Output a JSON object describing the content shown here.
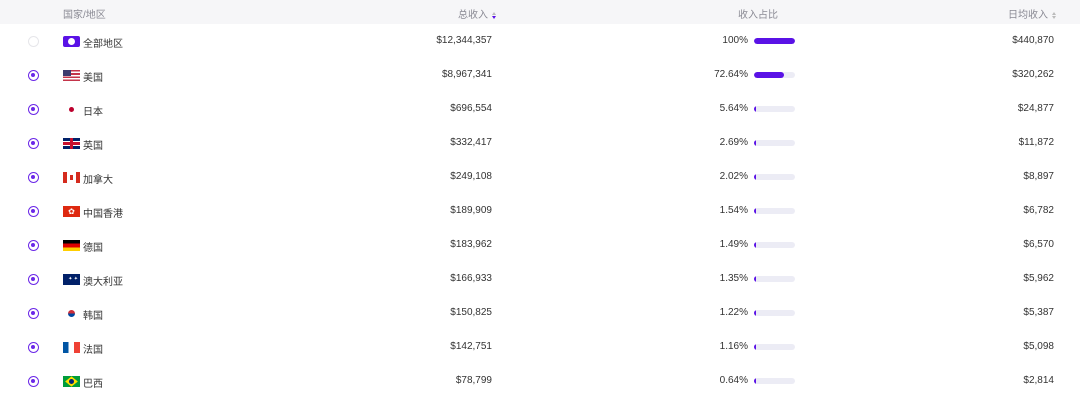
{
  "header": {
    "country": "国家/地区",
    "total": "总收入",
    "share": "收入占比",
    "daily": "日均收入"
  },
  "colors": {
    "accent": "#5a12e6",
    "radio": "#6b28e8",
    "bar_track": "#ececf5"
  },
  "rows": [
    {
      "name": "全部地区",
      "flag": "all-regions-icon",
      "selected": false,
      "total": "$12,344,357",
      "pct": "100%",
      "share": 100,
      "daily": "$440,870"
    },
    {
      "name": "美国",
      "flag": "us-flag-icon",
      "selected": true,
      "total": "$8,967,341",
      "pct": "72.64%",
      "share": 72.64,
      "daily": "$320,262"
    },
    {
      "name": "日本",
      "flag": "jp-flag-icon",
      "selected": true,
      "total": "$696,554",
      "pct": "5.64%",
      "share": 5.64,
      "daily": "$24,877"
    },
    {
      "name": "英国",
      "flag": "gb-flag-icon",
      "selected": true,
      "total": "$332,417",
      "pct": "2.69%",
      "share": 2.69,
      "daily": "$11,872"
    },
    {
      "name": "加拿大",
      "flag": "ca-flag-icon",
      "selected": true,
      "total": "$249,108",
      "pct": "2.02%",
      "share": 2.02,
      "daily": "$8,897"
    },
    {
      "name": "中国香港",
      "flag": "hk-flag-icon",
      "selected": true,
      "total": "$189,909",
      "pct": "1.54%",
      "share": 1.54,
      "daily": "$6,782"
    },
    {
      "name": "德国",
      "flag": "de-flag-icon",
      "selected": true,
      "total": "$183,962",
      "pct": "1.49%",
      "share": 1.49,
      "daily": "$6,570"
    },
    {
      "name": "澳大利亚",
      "flag": "au-flag-icon",
      "selected": true,
      "total": "$166,933",
      "pct": "1.35%",
      "share": 1.35,
      "daily": "$5,962"
    },
    {
      "name": "韩国",
      "flag": "kr-flag-icon",
      "selected": true,
      "total": "$150,825",
      "pct": "1.22%",
      "share": 1.22,
      "daily": "$5,387"
    },
    {
      "name": "法国",
      "flag": "fr-flag-icon",
      "selected": true,
      "total": "$142,751",
      "pct": "1.16%",
      "share": 1.16,
      "daily": "$5,098"
    },
    {
      "name": "巴西",
      "flag": "br-flag-icon",
      "selected": true,
      "total": "$78,799",
      "pct": "0.64%",
      "share": 0.64,
      "daily": "$2,814"
    }
  ]
}
